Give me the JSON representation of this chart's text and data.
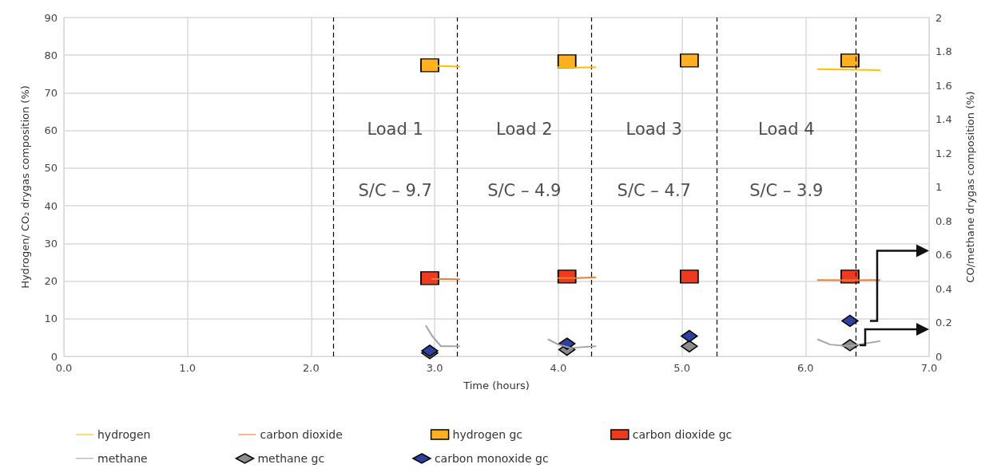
{
  "chart_data": {
    "type": "line",
    "xlabel": "Time (hours)",
    "ylabel": "Hydrogen/ CO₂ drygas composition (%)",
    "y2label": "CO/methane drygas composition (%)",
    "xlim": [
      0,
      7
    ],
    "xticks": [
      {
        "value": 0,
        "label": "0.0"
      },
      {
        "value": 1,
        "label": "1.0"
      },
      {
        "value": 2,
        "label": "2.0"
      },
      {
        "value": 3,
        "label": "3.0"
      },
      {
        "value": 4,
        "label": "4.0"
      },
      {
        "value": 5,
        "label": "5.0"
      },
      {
        "value": 6,
        "label": "6.0"
      },
      {
        "value": 7,
        "label": "7.0"
      }
    ],
    "ylim": [
      0,
      90
    ],
    "yticks": [
      0,
      10,
      20,
      30,
      40,
      50,
      60,
      70,
      80,
      90
    ],
    "y2lim": [
      0,
      2
    ],
    "y2ticks": [
      0,
      0.2,
      0.4,
      0.6,
      0.8,
      1,
      1.2,
      1.4,
      1.6,
      1.8,
      2
    ],
    "grid": true,
    "legend": "bottom",
    "series": [
      {
        "name": "hydrogen",
        "color": "#ffc000",
        "marker": "none",
        "x": [
          2.98,
          3.2,
          3.25,
          4.0,
          4.15,
          4.3,
          4.35,
          6.1,
          6.35,
          6.6
        ],
        "values": [
          77.2,
          77,
          null,
          76.8,
          76.7,
          76.8,
          null,
          76.3,
          76.2,
          76
        ]
      },
      {
        "name": "carbon dioxide",
        "color": "#ed7d31",
        "marker": "none",
        "x": [
          2.98,
          3.2,
          3.25,
          4.0,
          4.15,
          4.3,
          4.35,
          6.1,
          6.35,
          6.6
        ],
        "values": [
          20.6,
          20.5,
          null,
          20.8,
          20.8,
          21,
          null,
          20.3,
          20.2,
          20.3
        ]
      },
      {
        "name": "hydrogen gc",
        "type": "scatter",
        "color": "#ffb020",
        "marker": "square",
        "x": [
          2.96,
          4.07,
          5.06,
          6.36
        ],
        "values": [
          77.3,
          78.4,
          78.6,
          78.6
        ]
      },
      {
        "name": "carbon dioxide gc",
        "type": "scatter",
        "color": "#ee3a1f",
        "marker": "square",
        "x": [
          2.96,
          4.07,
          5.06,
          6.36
        ],
        "values": [
          20.8,
          21.2,
          21.2,
          21.2
        ]
      },
      {
        "name": "methane",
        "color": "#a5a5a5",
        "marker": "none",
        "axis": "y2",
        "x": [
          2.93,
          2.98,
          3.05,
          3.2,
          3.25,
          3.92,
          4.0,
          4.1,
          4.3,
          4.35,
          6.1,
          6.2,
          6.35,
          6.6
        ],
        "values": [
          0.18,
          0.12,
          0.06,
          0.06,
          null,
          0.1,
          0.07,
          0.05,
          0.06,
          null,
          0.1,
          0.07,
          0.06,
          0.09
        ]
      },
      {
        "name": "methane gc",
        "type": "scatter",
        "color": "#8c8c8c",
        "marker": "diamond",
        "axis": "y2",
        "x": [
          2.96,
          4.07,
          5.06,
          6.36
        ],
        "values": [
          0.02,
          0.04,
          0.06,
          0.066
        ]
      },
      {
        "name": "carbon monoxide gc",
        "type": "scatter",
        "color": "#2e40a0",
        "marker": "diamond",
        "axis": "y2",
        "x": [
          2.96,
          4.07,
          5.06,
          6.36
        ],
        "values": [
          0.033,
          0.075,
          0.12,
          0.21
        ]
      }
    ],
    "ref_lines": [
      {
        "axis": "x",
        "value": 2.18,
        "color": "#000000",
        "line_style": "dashed"
      },
      {
        "axis": "x",
        "value": 3.18,
        "color": "#000000",
        "line_style": "dashed"
      },
      {
        "axis": "x",
        "value": 4.27,
        "color": "#000000",
        "line_style": "dashed"
      },
      {
        "axis": "x",
        "value": 5.28,
        "color": "#000000",
        "line_style": "dashed"
      },
      {
        "axis": "x",
        "value": 6.41,
        "color": "#000000",
        "line_style": "dashed"
      }
    ],
    "annotations": [
      "Load 1",
      "S/C – 9.7",
      "Load 2",
      "S/C – 4.9",
      "Load 3",
      "S/C – 4.7",
      "Load 4",
      "S/C – 3.9"
    ]
  }
}
